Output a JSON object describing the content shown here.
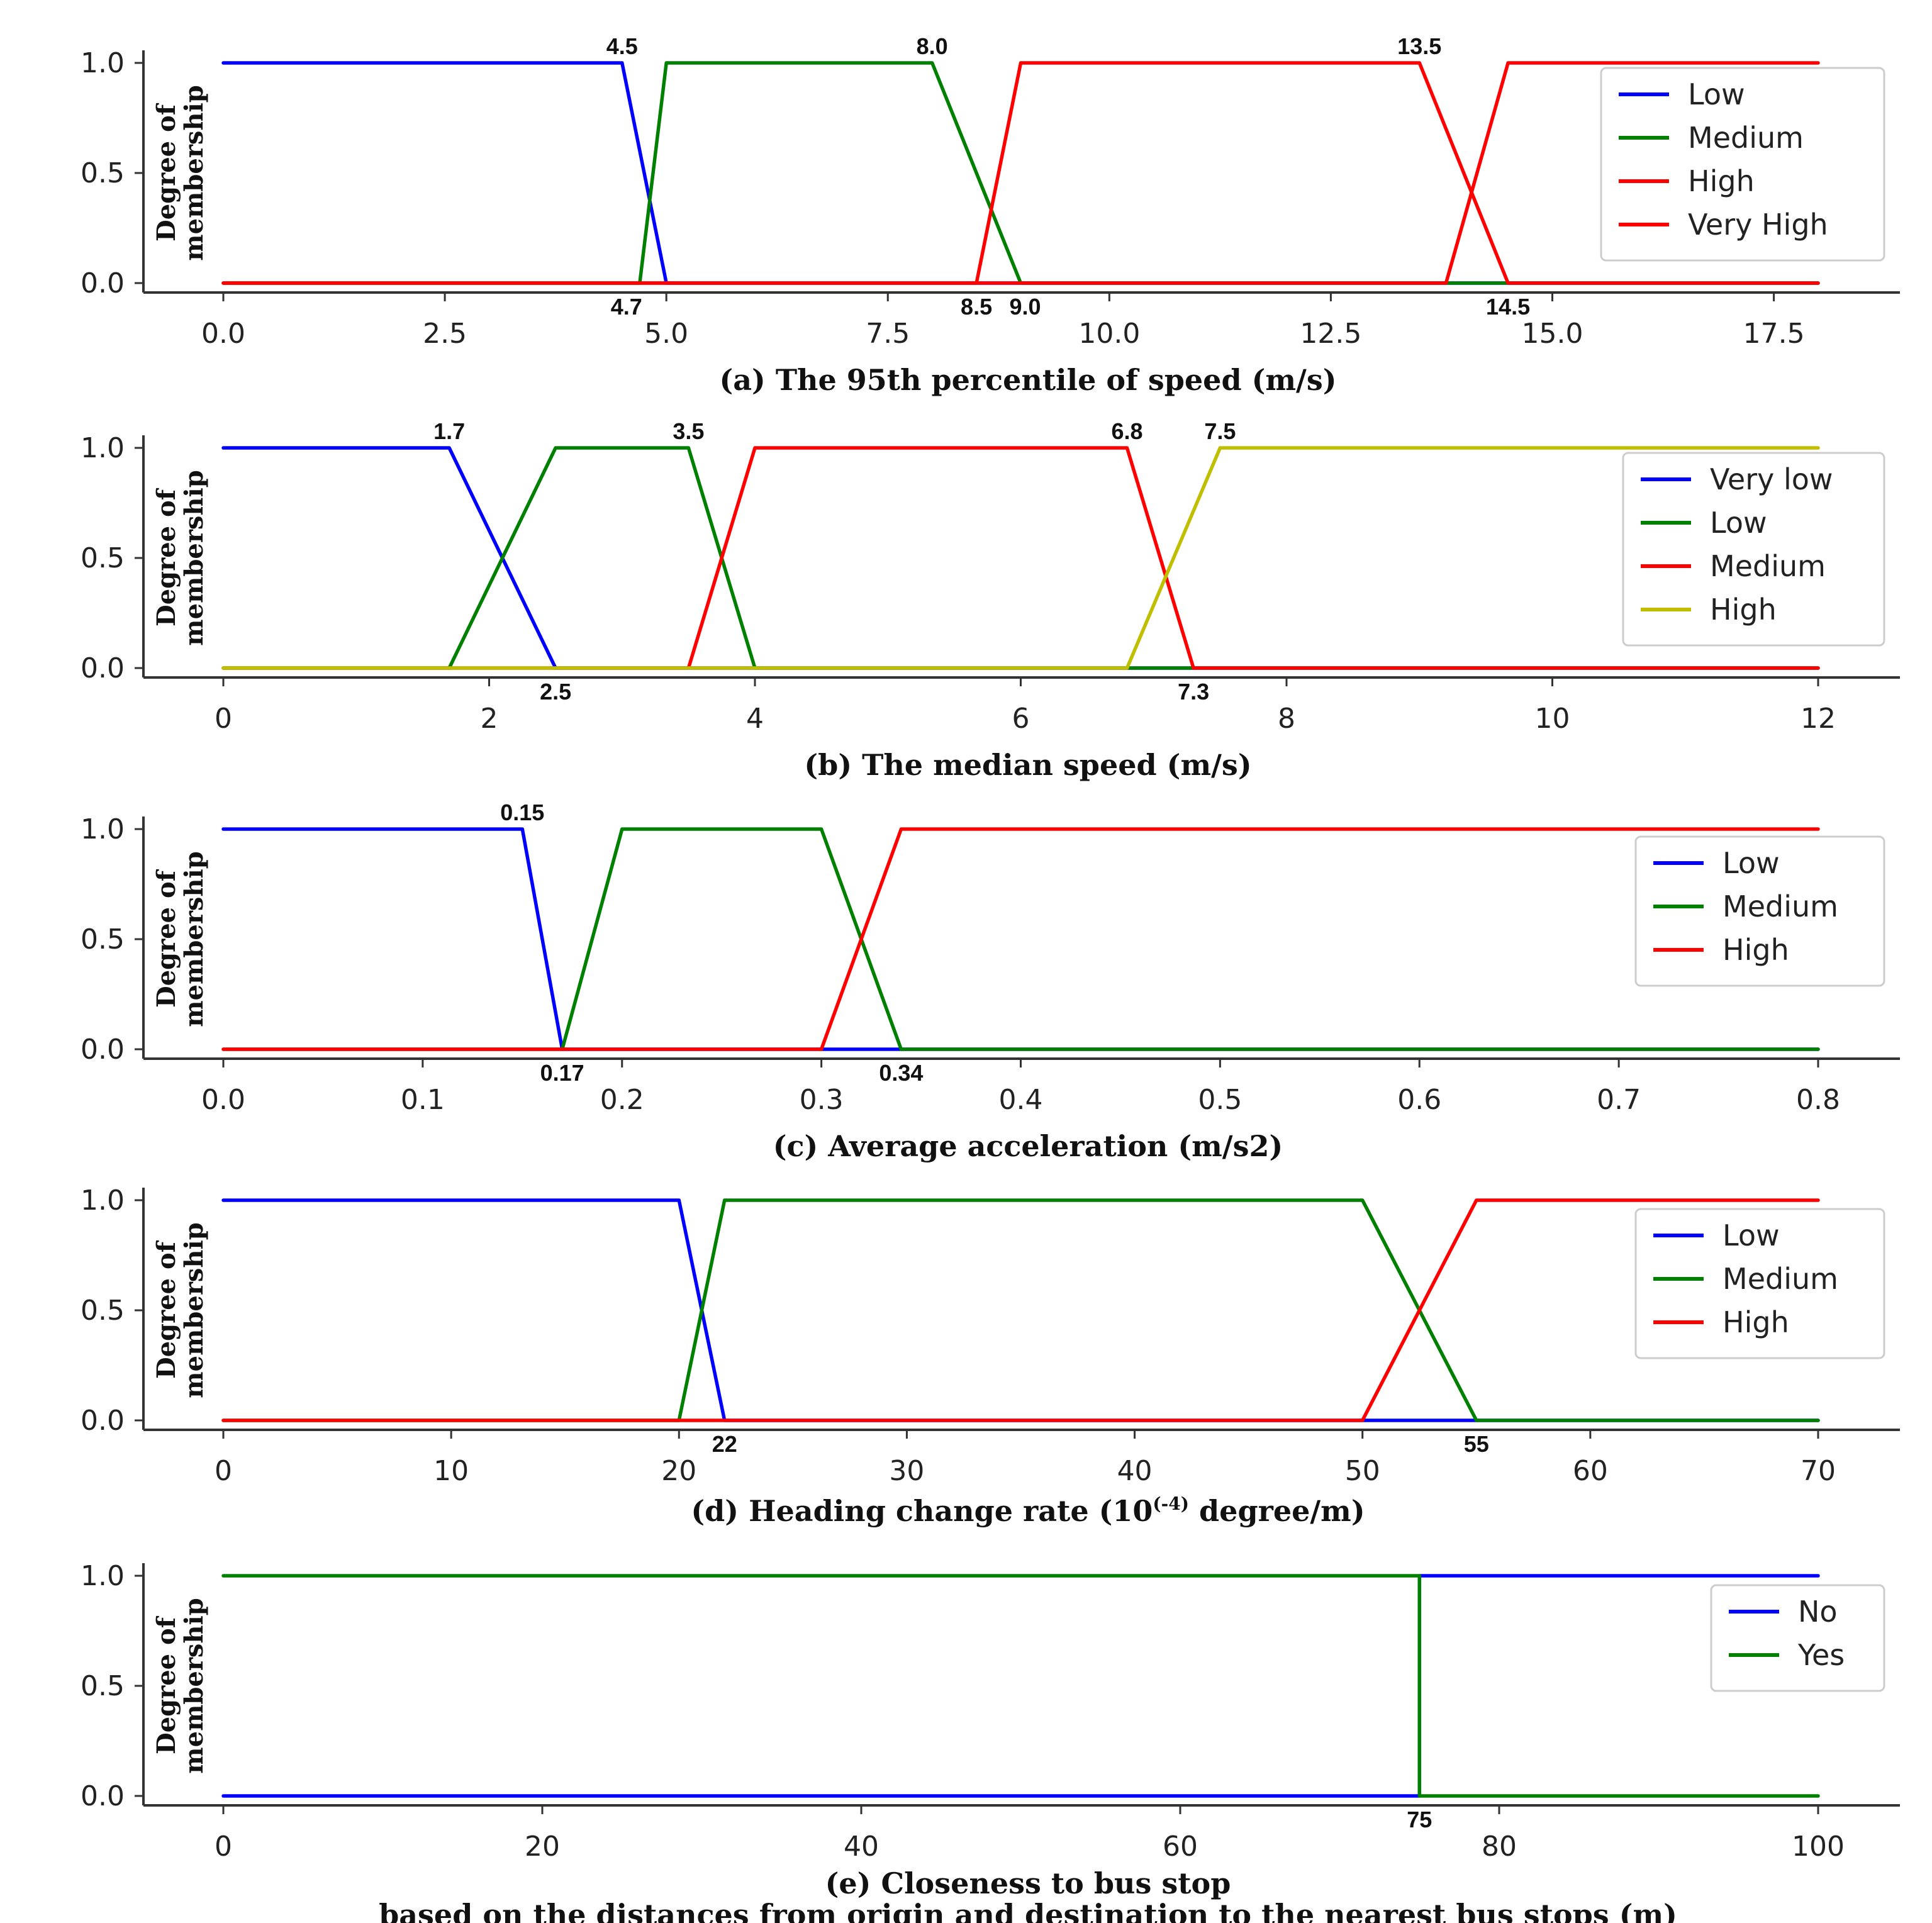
{
  "chart_data": [
    {
      "type": "line",
      "xlabel": "(a) The 95th percentile of speed (m/s)",
      "ylabel": [
        "Degree of",
        "membership"
      ],
      "xlim": [
        0,
        18
      ],
      "ylim": [
        0,
        1
      ],
      "xticks": [
        "0.0",
        "2.5",
        "5.0",
        "7.5",
        "10.0",
        "12.5",
        "15.0",
        "17.5"
      ],
      "xtick_values": [
        0,
        2.5,
        5,
        7.5,
        10,
        12.5,
        15,
        17.5
      ],
      "yticks": [
        "0.0",
        "0.5",
        "1.0"
      ],
      "legend_position": "top-right",
      "series": [
        {
          "name": "Low",
          "color": "#0000ff",
          "x": [
            0,
            4.5,
            5.0,
            18
          ],
          "y": [
            1,
            1,
            0,
            0
          ]
        },
        {
          "name": "Medium",
          "color": "#008000",
          "x": [
            0,
            4.7,
            5.0,
            8.0,
            9.0,
            18
          ],
          "y": [
            0,
            0,
            1,
            1,
            0,
            0
          ]
        },
        {
          "name": "High",
          "color": "#ff0000",
          "x": [
            0,
            8.5,
            9.0,
            13.5,
            14.5,
            18
          ],
          "y": [
            0,
            0,
            1,
            1,
            0,
            0
          ]
        },
        {
          "name": "Very High",
          "color": "#ff0000",
          "x": [
            0,
            13.8,
            14.5,
            18
          ],
          "y": [
            0,
            0,
            1,
            1
          ]
        }
      ],
      "annotations": [
        {
          "text": "4.5",
          "x": 4.5,
          "pos": "top"
        },
        {
          "text": "8.0",
          "x": 8.0,
          "pos": "top"
        },
        {
          "text": "13.5",
          "x": 13.5,
          "pos": "top"
        },
        {
          "text": "4.7",
          "x": 4.55,
          "pos": "bottom"
        },
        {
          "text": "8.5",
          "x": 8.5,
          "pos": "bottom"
        },
        {
          "text": "9.0",
          "x": 9.05,
          "pos": "bottom"
        },
        {
          "text": "14.5",
          "x": 14.5,
          "pos": "bottom"
        }
      ]
    },
    {
      "type": "line",
      "xlabel": "(b) The median speed (m/s)",
      "ylabel": [
        "Degree of",
        "membership"
      ],
      "xlim": [
        0,
        12
      ],
      "ylim": [
        0,
        1
      ],
      "xticks": [
        "0",
        "2",
        "4",
        "6",
        "8",
        "10",
        "12"
      ],
      "xtick_values": [
        0,
        2,
        4,
        6,
        8,
        10,
        12
      ],
      "yticks": [
        "0.0",
        "0.5",
        "1.0"
      ],
      "legend_position": "top-right",
      "series": [
        {
          "name": "Very low",
          "color": "#0000ff",
          "x": [
            0,
            1.7,
            2.5,
            12
          ],
          "y": [
            1,
            1,
            0,
            0
          ]
        },
        {
          "name": "Low",
          "color": "#008000",
          "x": [
            0,
            1.7,
            2.5,
            3.5,
            4.0,
            12
          ],
          "y": [
            0,
            0,
            1,
            1,
            0,
            0
          ]
        },
        {
          "name": "Medium",
          "color": "#ff0000",
          "x": [
            0,
            3.5,
            4.0,
            6.8,
            7.3,
            12
          ],
          "y": [
            0,
            0,
            1,
            1,
            0,
            0
          ]
        },
        {
          "name": "High",
          "color": "#bfbf00",
          "x": [
            0,
            6.8,
            7.5,
            12
          ],
          "y": [
            0,
            0,
            1,
            1
          ]
        }
      ],
      "annotations": [
        {
          "text": "1.7",
          "x": 1.7,
          "pos": "top"
        },
        {
          "text": "3.5",
          "x": 3.5,
          "pos": "top"
        },
        {
          "text": "6.8",
          "x": 6.8,
          "pos": "top"
        },
        {
          "text": "7.5",
          "x": 7.5,
          "pos": "top"
        },
        {
          "text": "2.5",
          "x": 2.5,
          "pos": "bottom"
        },
        {
          "text": "7.3",
          "x": 7.3,
          "pos": "bottom"
        }
      ]
    },
    {
      "type": "line",
      "xlabel": "(c) Average acceleration (m/s2)",
      "ylabel": [
        "Degree of",
        "membership"
      ],
      "xlim": [
        0,
        0.8
      ],
      "ylim": [
        0,
        1
      ],
      "xticks": [
        "0.0",
        "0.1",
        "0.2",
        "0.3",
        "0.4",
        "0.5",
        "0.6",
        "0.7",
        "0.8"
      ],
      "xtick_values": [
        0,
        0.1,
        0.2,
        0.3,
        0.4,
        0.5,
        0.6,
        0.7,
        0.8
      ],
      "yticks": [
        "0.0",
        "0.5",
        "1.0"
      ],
      "legend_position": "top-right",
      "series": [
        {
          "name": "Low",
          "color": "#0000ff",
          "x": [
            0,
            0.15,
            0.17,
            0.34,
            0.8
          ],
          "y": [
            1,
            1,
            0,
            0,
            0
          ]
        },
        {
          "name": "Medium",
          "color": "#008000",
          "x": [
            0,
            0.17,
            0.2,
            0.3,
            0.34,
            0.8
          ],
          "y": [
            0,
            0,
            1,
            1,
            0,
            0
          ]
        },
        {
          "name": "High",
          "color": "#ff0000",
          "x": [
            0,
            0.3,
            0.34,
            0.8
          ],
          "y": [
            0,
            0,
            1,
            1
          ]
        }
      ],
      "annotations": [
        {
          "text": "0.15",
          "x": 0.15,
          "pos": "top"
        },
        {
          "text": "0.17",
          "x": 0.17,
          "pos": "bottom"
        },
        {
          "text": "0.34",
          "x": 0.34,
          "pos": "bottom"
        }
      ]
    },
    {
      "type": "line",
      "xlabel": "(d) Heading change rate (10",
      "xlabel_sup": "(-4)",
      "xlabel_tail": " degree/m)",
      "ylabel": [
        "Degree of",
        "membership"
      ],
      "xlim": [
        0,
        70
      ],
      "ylim": [
        0,
        1
      ],
      "xticks": [
        "0",
        "10",
        "20",
        "30",
        "40",
        "50",
        "60",
        "70"
      ],
      "xtick_values": [
        0,
        10,
        20,
        30,
        40,
        50,
        60,
        70
      ],
      "yticks": [
        "0.0",
        "0.5",
        "1.0"
      ],
      "legend_position": "top-right",
      "series": [
        {
          "name": "Low",
          "color": "#0000ff",
          "x": [
            0,
            20,
            22,
            70
          ],
          "y": [
            1,
            1,
            0,
            0
          ]
        },
        {
          "name": "Medium",
          "color": "#008000",
          "x": [
            0,
            20,
            22,
            50,
            55,
            70
          ],
          "y": [
            0,
            0,
            1,
            1,
            0,
            0
          ]
        },
        {
          "name": "High",
          "color": "#ff0000",
          "x": [
            0,
            50,
            55,
            70
          ],
          "y": [
            0,
            0,
            1,
            1
          ]
        }
      ],
      "annotations": [
        {
          "text": "22",
          "x": 22,
          "pos": "bottom"
        },
        {
          "text": "55",
          "x": 55,
          "pos": "bottom"
        }
      ]
    },
    {
      "type": "line",
      "xlabel": "(e) Closeness to bus stop",
      "xlabel2": "based on the distances from origin and destination to the nearest bus stops (m)",
      "ylabel": [
        "Degree of",
        "membership"
      ],
      "xlim": [
        0,
        100
      ],
      "ylim": [
        0,
        1
      ],
      "xticks": [
        "0",
        "20",
        "40",
        "60",
        "80",
        "100"
      ],
      "xtick_values": [
        0,
        20,
        40,
        60,
        80,
        100
      ],
      "yticks": [
        "0.0",
        "0.5",
        "1.0"
      ],
      "legend_position": "top-right",
      "series": [
        {
          "name": "No",
          "color": "#0000ff",
          "x": [
            0,
            75,
            75,
            100
          ],
          "y": [
            0,
            0,
            1,
            1
          ]
        },
        {
          "name": "Yes",
          "color": "#008000",
          "x": [
            0,
            75,
            75,
            100
          ],
          "y": [
            1,
            1,
            0,
            0
          ]
        }
      ],
      "annotations": [
        {
          "text": "75",
          "x": 75,
          "pos": "bottom"
        }
      ]
    }
  ]
}
